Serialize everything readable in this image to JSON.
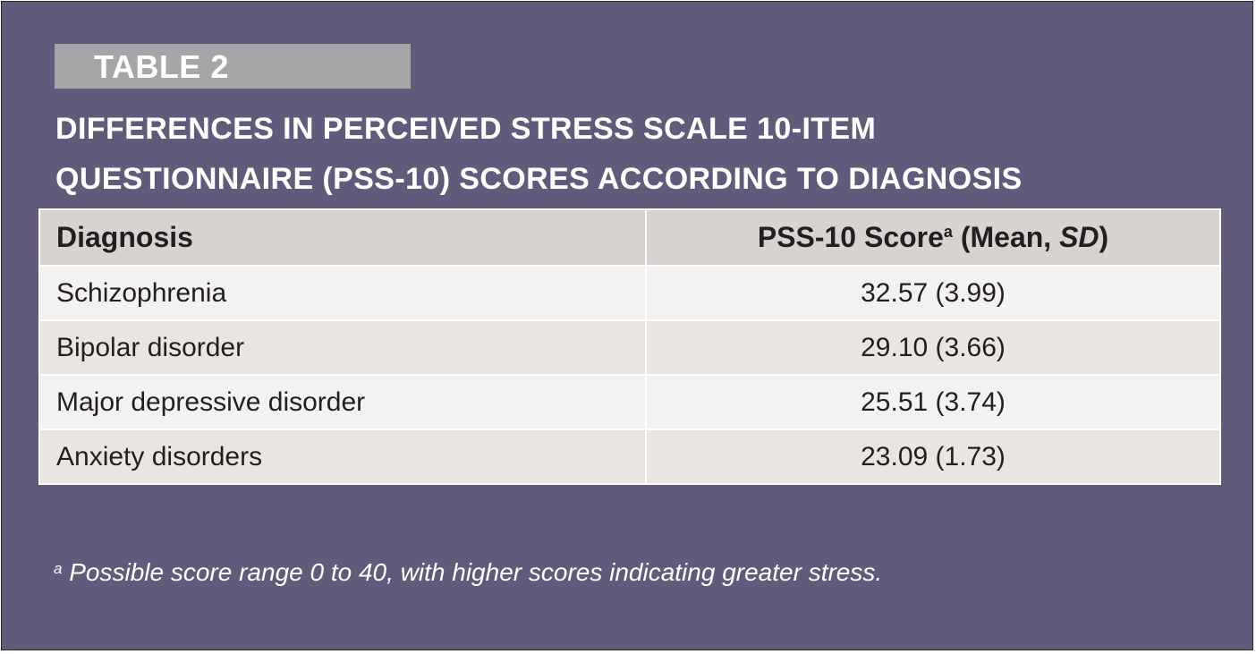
{
  "table_label": "TABLE 2",
  "title_line1": "DIFFERENCES IN PERCEIVED STRESS SCALE 10-ITEM",
  "title_line2": "QUESTIONNAIRE (PSS-10) SCORES ACCORDING TO DIAGNOSIS",
  "header": {
    "col1": "Diagnosis",
    "col2_main": "PSS-10 Score",
    "col2_sup": "a",
    "col2_open": " (Mean, ",
    "col2_sd": "SD",
    "col2_close": ")"
  },
  "rows": [
    {
      "diagnosis": "Schizophrenia",
      "score": "32.57 (3.99)"
    },
    {
      "diagnosis": "Bipolar disorder",
      "score": "29.10 (3.66)"
    },
    {
      "diagnosis": "Major depressive disorder",
      "score": "25.51 (3.74)"
    },
    {
      "diagnosis": "Anxiety disorders",
      "score": "23.09 (1.73)"
    }
  ],
  "footnote": {
    "marker": "a",
    "text": " Possible score range 0 to 40, with higher scores indicating greater stress."
  },
  "colors": {
    "panel_background": "#625a7b",
    "label_background": "#a6a6a9",
    "header_background": "#d8d3d1",
    "row_light": "#f3f2f0",
    "row_dark": "#e9e6e2"
  }
}
